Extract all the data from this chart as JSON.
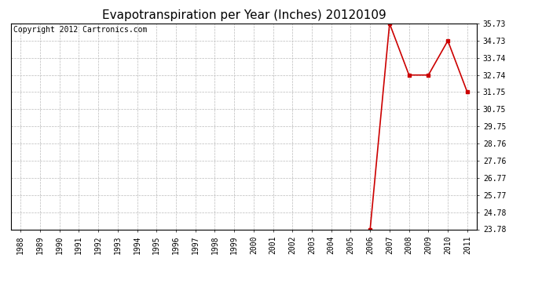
{
  "title": "Evapotranspiration per Year (Inches) 20120109",
  "copyright_text": "Copyright 2012 Cartronics.com",
  "years": [
    1988,
    1989,
    1990,
    1991,
    1992,
    1993,
    1994,
    1995,
    1996,
    1997,
    1998,
    1999,
    2000,
    2001,
    2002,
    2003,
    2004,
    2005,
    2006,
    2007,
    2008,
    2009,
    2010,
    2011
  ],
  "values": [
    null,
    null,
    null,
    null,
    null,
    null,
    null,
    null,
    null,
    null,
    null,
    null,
    null,
    null,
    null,
    null,
    null,
    null,
    23.78,
    35.73,
    32.74,
    32.74,
    34.73,
    31.75
  ],
  "line_color": "#cc0000",
  "marker": "s",
  "marker_size": 3,
  "ylim_min": 23.78,
  "ylim_max": 35.73,
  "yticks": [
    23.78,
    24.78,
    25.77,
    26.77,
    27.76,
    28.76,
    29.75,
    30.75,
    31.75,
    32.74,
    33.74,
    34.73,
    35.73
  ],
  "bg_color": "#ffffff",
  "plot_bg_color": "#ffffff",
  "grid_color": "#bbbbbb",
  "title_fontsize": 11,
  "copyright_fontsize": 7,
  "tick_fontsize": 7
}
